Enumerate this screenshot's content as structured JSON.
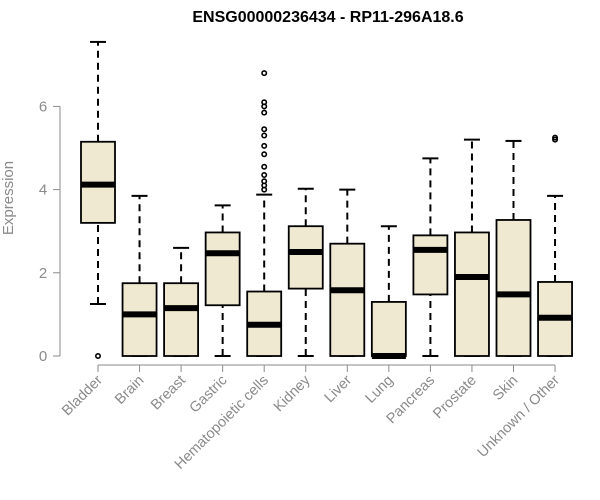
{
  "chart_data": {
    "type": "box",
    "title": "ENSG00000236434 - RP11-296A18.6",
    "xlabel": "",
    "ylabel": "Expression",
    "ylim": [
      0,
      7.6
    ],
    "yticks": [
      0,
      2,
      4,
      6
    ],
    "box_fill": "#efe9d1",
    "axis_color": "#8a8a8a",
    "categories": [
      "Bladder",
      "Brain",
      "Breast",
      "Gastric",
      "Hematopoietic cells",
      "Kidney",
      "Liver",
      "Lung",
      "Pancreas",
      "Prostate",
      "Skin",
      "Unknown / Other"
    ],
    "boxes": [
      {
        "q1": 3.2,
        "median": 4.12,
        "q3": 5.15,
        "whisker_low": 1.25,
        "whisker_high": 7.55,
        "outliers": [
          0.0
        ]
      },
      {
        "q1": 0.0,
        "median": 1.0,
        "q3": 1.75,
        "whisker_low": 0.0,
        "whisker_high": 3.85,
        "outliers": []
      },
      {
        "q1": 0.0,
        "median": 1.15,
        "q3": 1.75,
        "whisker_low": 0.0,
        "whisker_high": 2.6,
        "outliers": []
      },
      {
        "q1": 1.22,
        "median": 2.47,
        "q3": 2.97,
        "whisker_low": 0.0,
        "whisker_high": 3.62,
        "outliers": []
      },
      {
        "q1": 0.0,
        "median": 0.75,
        "q3": 1.55,
        "whisker_low": 0.0,
        "whisker_high": 3.88,
        "outliers": [
          4.0,
          4.1,
          4.2,
          4.35,
          4.55,
          4.85,
          5.05,
          5.3,
          5.45,
          5.85,
          6.0,
          6.1,
          6.8
        ]
      },
      {
        "q1": 1.62,
        "median": 2.5,
        "q3": 3.12,
        "whisker_low": 0.0,
        "whisker_high": 4.02,
        "outliers": []
      },
      {
        "q1": 0.0,
        "median": 1.58,
        "q3": 2.7,
        "whisker_low": 0.0,
        "whisker_high": 4.0,
        "outliers": []
      },
      {
        "q1": 0.0,
        "median": 0.0,
        "q3": 1.3,
        "whisker_low": 0.0,
        "whisker_high": 3.12,
        "outliers": []
      },
      {
        "q1": 1.48,
        "median": 2.55,
        "q3": 2.9,
        "whisker_low": 0.0,
        "whisker_high": 4.75,
        "outliers": []
      },
      {
        "q1": 0.0,
        "median": 1.9,
        "q3": 2.97,
        "whisker_low": 0.0,
        "whisker_high": 5.2,
        "outliers": []
      },
      {
        "q1": 0.0,
        "median": 1.48,
        "q3": 3.27,
        "whisker_low": 0.0,
        "whisker_high": 5.17,
        "outliers": []
      },
      {
        "q1": 0.0,
        "median": 0.92,
        "q3": 1.78,
        "whisker_low": 0.0,
        "whisker_high": 3.85,
        "outliers": [
          5.2,
          5.25
        ]
      }
    ]
  }
}
